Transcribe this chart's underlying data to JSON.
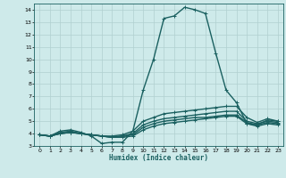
{
  "xlabel": "Humidex (Indice chaleur)",
  "xlim": [
    -0.5,
    23.5
  ],
  "ylim": [
    3,
    14.5
  ],
  "yticks": [
    3,
    4,
    5,
    6,
    7,
    8,
    9,
    10,
    11,
    12,
    13,
    14
  ],
  "xticks": [
    0,
    1,
    2,
    3,
    4,
    5,
    6,
    7,
    8,
    9,
    10,
    11,
    12,
    13,
    14,
    15,
    16,
    17,
    18,
    19,
    20,
    21,
    22,
    23
  ],
  "background_color": "#ceeaea",
  "grid_color": "#b0d0d0",
  "line_color": "#1a6060",
  "line_width": 1.0,
  "marker": "+",
  "marker_size": 3,
  "series": [
    {
      "x": [
        0,
        1,
        2,
        3,
        4,
        5,
        6,
        7,
        8,
        9,
        10,
        11,
        12,
        13,
        14,
        15,
        16,
        17,
        18,
        19,
        20,
        21,
        22,
        23
      ],
      "y": [
        3.9,
        3.8,
        4.2,
        4.3,
        4.1,
        3.8,
        3.2,
        3.3,
        3.3,
        4.2,
        7.5,
        10.0,
        13.3,
        13.5,
        14.2,
        14.0,
        13.7,
        10.5,
        7.5,
        6.5,
        4.8,
        4.7,
        5.1,
        5.0
      ]
    },
    {
      "x": [
        0,
        1,
        2,
        3,
        4,
        5,
        6,
        7,
        8,
        9,
        10,
        11,
        12,
        13,
        14,
        15,
        16,
        17,
        18,
        19,
        20,
        21,
        22,
        23
      ],
      "y": [
        3.9,
        3.8,
        4.1,
        4.2,
        4.0,
        3.9,
        3.8,
        3.8,
        3.9,
        4.2,
        5.0,
        5.3,
        5.6,
        5.7,
        5.8,
        5.9,
        6.0,
        6.1,
        6.2,
        6.2,
        5.3,
        4.9,
        5.2,
        5.0
      ]
    },
    {
      "x": [
        0,
        1,
        2,
        3,
        4,
        5,
        6,
        7,
        8,
        9,
        10,
        11,
        12,
        13,
        14,
        15,
        16,
        17,
        18,
        19,
        20,
        21,
        22,
        23
      ],
      "y": [
        3.9,
        3.8,
        4.0,
        4.1,
        4.0,
        3.9,
        3.8,
        3.7,
        3.8,
        4.0,
        4.7,
        5.0,
        5.2,
        5.3,
        5.4,
        5.5,
        5.6,
        5.7,
        5.8,
        5.8,
        5.0,
        4.8,
        5.0,
        4.9
      ]
    },
    {
      "x": [
        0,
        1,
        2,
        3,
        4,
        5,
        6,
        7,
        8,
        9,
        10,
        11,
        12,
        13,
        14,
        15,
        16,
        17,
        18,
        19,
        20,
        21,
        22,
        23
      ],
      "y": [
        3.9,
        3.8,
        4.0,
        4.1,
        4.0,
        3.9,
        3.8,
        3.7,
        3.8,
        3.9,
        4.5,
        4.8,
        5.0,
        5.1,
        5.2,
        5.3,
        5.3,
        5.4,
        5.5,
        5.5,
        4.9,
        4.7,
        4.9,
        4.8
      ]
    },
    {
      "x": [
        0,
        1,
        2,
        3,
        4,
        5,
        6,
        7,
        8,
        9,
        10,
        11,
        12,
        13,
        14,
        15,
        16,
        17,
        18,
        19,
        20,
        21,
        22,
        23
      ],
      "y": [
        3.9,
        3.8,
        4.0,
        4.1,
        4.0,
        3.9,
        3.8,
        3.7,
        3.7,
        3.8,
        4.3,
        4.6,
        4.8,
        4.9,
        5.0,
        5.1,
        5.2,
        5.3,
        5.4,
        5.4,
        4.8,
        4.6,
        4.8,
        4.7
      ]
    }
  ]
}
